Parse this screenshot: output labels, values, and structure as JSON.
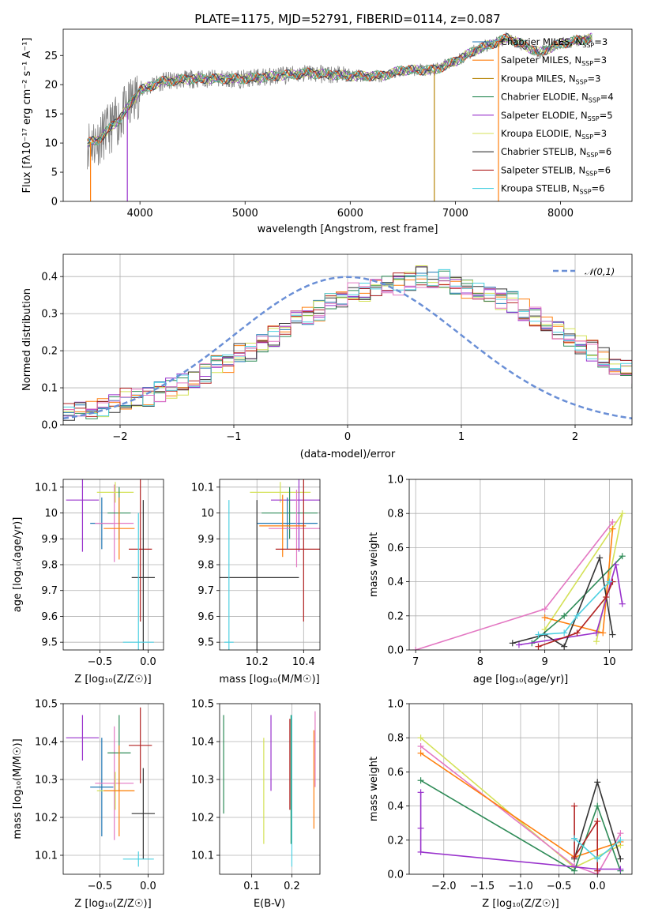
{
  "figure": {
    "title": "PLATE=1175, MJD=52791, FIBERID=0114, z=0.087"
  },
  "chart_data": [
    {
      "id": "spectrum",
      "type": "line",
      "xlabel": "wavelength [Angstrom, rest frame]",
      "ylabel": "Flux [fλ10⁻¹⁷ erg cm⁻² s⁻¹ A⁻¹]",
      "xlim": [
        3270,
        8680
      ],
      "ylim": [
        0,
        29.5
      ],
      "xticks": [
        4000,
        5000,
        6000,
        7000,
        8000
      ],
      "yticks": [
        0,
        5,
        10,
        15,
        20,
        25
      ],
      "legend_position": "right",
      "data": {
        "x": [
          3500,
          3600,
          3800,
          4000,
          4200,
          4500,
          4800,
          5000,
          5300,
          5600,
          6000,
          6300,
          6500,
          6800,
          7000,
          7200,
          7500,
          7800,
          8000,
          8300
        ],
        "y": [
          10,
          10.5,
          14,
          19,
          20.5,
          21,
          21,
          21,
          21.5,
          22,
          21.5,
          21.5,
          22.5,
          22.5,
          24,
          26,
          28,
          25.5,
          27,
          28
        ]
      },
      "series": [
        {
          "name": "Chabrier MILES, N_SSP=3",
          "label": "Chabrier MILES, N",
          "sub": "SSP",
          "suffix": "=3",
          "color": "#1f77b4"
        },
        {
          "name": "Salpeter MILES, N_SSP=3",
          "label": "Salpeter MILES, N",
          "sub": "SSP",
          "suffix": "=3",
          "color": "#ff7f0e"
        },
        {
          "name": "Kroupa MILES, N_SSP=3",
          "label": "Kroupa MILES, N",
          "sub": "SSP",
          "suffix": "=3",
          "color": "#b8860b"
        },
        {
          "name": "Chabrier ELODIE, N_SSP=4",
          "label": "Chabrier ELODIE, N",
          "sub": "SSP",
          "suffix": "=4",
          "color": "#2e8b57"
        },
        {
          "name": "Salpeter ELODIE, N_SSP=5",
          "label": "Salpeter ELODIE, N",
          "sub": "SSP",
          "suffix": "=5",
          "color": "#9932cc"
        },
        {
          "name": "Kroupa ELODIE, N_SSP=3",
          "label": "Kroupa ELODIE, N",
          "sub": "SSP",
          "suffix": "=3",
          "color": "#d4e157"
        },
        {
          "name": "Chabrier STELIB, N_SSP=6",
          "label": "Chabrier STELIB, N",
          "sub": "SSP",
          "suffix": "=6",
          "color": "#333333"
        },
        {
          "name": "Salpeter STELIB, N_SSP=6",
          "label": "Salpeter STELIB, N",
          "sub": "SSP",
          "suffix": "=6",
          "color": "#b22222"
        },
        {
          "name": "Kroupa STELIB, N_SSP=6",
          "label": "Kroupa STELIB, N",
          "sub": "SSP",
          "suffix": "=6",
          "color": "#4dd0e1"
        }
      ]
    },
    {
      "id": "residuals",
      "type": "bar",
      "xlabel": "(data-model)/error",
      "ylabel": "Normed distribution",
      "xlim": [
        -2.5,
        2.5
      ],
      "ylim": [
        0,
        0.46
      ],
      "xticks": [
        -2,
        -1,
        0,
        1,
        2
      ],
      "yticks": [
        0.0,
        0.1,
        0.2,
        0.3,
        0.4
      ],
      "grid": true,
      "legend": "𝒩(0,1)",
      "legend_position": "top-right",
      "bin_width": 0.1,
      "bin_start": -2.5,
      "histogram": [
        0.03,
        0.035,
        0.04,
        0.05,
        0.06,
        0.07,
        0.075,
        0.08,
        0.09,
        0.1,
        0.11,
        0.12,
        0.14,
        0.16,
        0.17,
        0.19,
        0.2,
        0.22,
        0.24,
        0.26,
        0.28,
        0.3,
        0.31,
        0.33,
        0.34,
        0.36,
        0.36,
        0.37,
        0.38,
        0.38,
        0.39,
        0.4,
        0.39,
        0.39,
        0.38,
        0.37,
        0.36,
        0.35,
        0.34,
        0.33,
        0.31,
        0.29,
        0.27,
        0.25,
        0.24,
        0.22,
        0.2,
        0.18,
        0.16,
        0.15,
        0.13,
        0.12,
        0.11,
        0.1,
        0.09,
        0.08,
        0.07,
        0.06,
        0.055,
        0.05,
        0.045,
        0.04,
        0.035,
        0.03,
        0.03,
        0.03,
        0.025,
        0.025,
        0.02,
        0.02
      ],
      "normal_curve_color": "#6a8fd6"
    },
    {
      "id": "age-vs-Z",
      "type": "scatter",
      "xlabel": "Z [log₁₀(Z/Z☉)]",
      "ylabel": "age  [log₁₀(age/yr)]",
      "xlim": [
        -0.88,
        0.16
      ],
      "ylim": [
        9.47,
        10.13
      ],
      "xticks": [
        -0.5,
        0.0
      ],
      "xticklabels": [
        "−0.5",
        "0.0"
      ],
      "yticks": [
        9.5,
        9.6,
        9.7,
        9.8,
        9.9,
        10.0,
        10.1
      ],
      "grid": true,
      "points": [
        {
          "x": -0.68,
          "xerr": 0.17,
          "y": 10.05,
          "yerr": 0.2,
          "color": "#9932cc"
        },
        {
          "x": -0.48,
          "xerr": 0.12,
          "y": 9.96,
          "yerr": 0.1,
          "color": "#1f77b4"
        },
        {
          "x": -0.35,
          "xerr": 0.2,
          "y": 9.96,
          "yerr": 0.15,
          "color": "#e377c2"
        },
        {
          "x": -0.34,
          "xerr": 0.19,
          "y": 10.08,
          "yerr": 0.04,
          "color": "#d4e157"
        },
        {
          "x": -0.3,
          "xerr": 0.12,
          "y": 10.0,
          "yerr": 0.1,
          "color": "#2e8b57"
        },
        {
          "x": -0.3,
          "xerr": 0.16,
          "y": 9.94,
          "yerr": 0.12,
          "color": "#ff7f0e"
        },
        {
          "x": -0.08,
          "xerr": 0.12,
          "y": 9.86,
          "yerr": 0.28,
          "color": "#b22222"
        },
        {
          "x": -0.05,
          "xerr": 0.12,
          "y": 9.75,
          "yerr": 0.3,
          "color": "#333333"
        },
        {
          "x": -0.1,
          "xerr": 0.16,
          "y": 9.5,
          "yerr": 0.5,
          "color": "#4dd0e1"
        }
      ]
    },
    {
      "id": "age-vs-mass",
      "type": "scatter",
      "xlabel": "mass [log₁₀(M/M☉)]",
      "ylabel": "",
      "xlim": [
        10.04,
        10.47
      ],
      "ylim": [
        9.47,
        10.13
      ],
      "xticks": [
        10.2,
        10.4
      ],
      "yticks": [
        9.5,
        9.6,
        9.7,
        9.8,
        9.9,
        10.0,
        10.1
      ],
      "grid": true,
      "points": [
        {
          "x": 10.3,
          "xerr": 0.13,
          "y": 10.08,
          "yerr": 0.04,
          "color": "#d4e157"
        },
        {
          "x": 10.38,
          "xerr": 0.12,
          "y": 10.05,
          "yerr": 0.2,
          "color": "#9932cc"
        },
        {
          "x": 10.34,
          "xerr": 0.12,
          "y": 10.0,
          "yerr": 0.1,
          "color": "#2e8b57"
        },
        {
          "x": 10.33,
          "xerr": 0.13,
          "y": 9.96,
          "yerr": 0.1,
          "color": "#1f77b4"
        },
        {
          "x": 10.37,
          "xerr": 0.12,
          "y": 9.94,
          "yerr": 0.15,
          "color": "#e377c2"
        },
        {
          "x": 10.31,
          "xerr": 0.1,
          "y": 9.95,
          "yerr": 0.12,
          "color": "#ff7f0e"
        },
        {
          "x": 10.4,
          "xerr": 0.12,
          "y": 9.86,
          "yerr": 0.28,
          "color": "#b22222"
        },
        {
          "x": 10.2,
          "xerr": 0.18,
          "y": 9.75,
          "yerr": 0.3,
          "color": "#333333"
        },
        {
          "x": 10.08,
          "xerr": 0.02,
          "y": 9.5,
          "yerr": 0.55,
          "color": "#4dd0e1"
        }
      ]
    },
    {
      "id": "mass-weight-vs-age",
      "type": "line",
      "xlabel": "age  [log₁₀(age/yr)]",
      "ylabel": "mass weight",
      "xlim": [
        6.9,
        10.35
      ],
      "ylim": [
        0,
        1.0
      ],
      "xticks": [
        7,
        8,
        9,
        10
      ],
      "yticks": [
        0.0,
        0.2,
        0.4,
        0.6,
        0.8,
        1.0
      ],
      "grid": true,
      "series": [
        {
          "color": "#e377c2",
          "x": [
            7.0,
            9.0,
            10.05
          ],
          "y": [
            0.0,
            0.24,
            0.75
          ]
        },
        {
          "color": "#d4e157",
          "x": [
            9.0,
            10.2,
            9.8
          ],
          "y": [
            0.12,
            0.8,
            0.05
          ]
        },
        {
          "color": "#ff7f0e",
          "x": [
            9.0,
            9.9,
            10.05
          ],
          "y": [
            0.19,
            0.1,
            0.71
          ]
        },
        {
          "color": "#2e8b57",
          "x": [
            8.8,
            9.3,
            10.2
          ],
          "y": [
            0.04,
            0.2,
            0.55
          ]
        },
        {
          "color": "#9932cc",
          "x": [
            8.6,
            9.8,
            10.1,
            10.2
          ],
          "y": [
            0.03,
            0.1,
            0.5,
            0.27
          ]
        },
        {
          "color": "#333333",
          "x": [
            8.5,
            9.0,
            9.3,
            9.85,
            10.05
          ],
          "y": [
            0.04,
            0.09,
            0.02,
            0.54,
            0.09
          ]
        },
        {
          "color": "#b22222",
          "x": [
            8.9,
            9.5,
            9.95,
            10.05
          ],
          "y": [
            0.02,
            0.1,
            0.31,
            0.4
          ]
        },
        {
          "color": "#4dd0e1",
          "x": [
            8.9,
            9.3,
            9.5,
            10.0
          ],
          "y": [
            0.09,
            0.1,
            0.2,
            0.4
          ]
        }
      ]
    },
    {
      "id": "mass-vs-Z",
      "type": "scatter",
      "xlabel": "Z [log₁₀(Z/Z☉)]",
      "ylabel": "mass [log₁₀(M/M☉)]",
      "xlim": [
        -0.88,
        0.16
      ],
      "ylim": [
        10.05,
        10.5
      ],
      "xticks": [
        -0.5,
        0.0
      ],
      "xticklabels": [
        "−0.5",
        "0.0"
      ],
      "yticks": [
        10.1,
        10.2,
        10.3,
        10.4,
        10.5
      ],
      "grid": true,
      "points": [
        {
          "x": -0.68,
          "xerr": 0.17,
          "y": 10.41,
          "yerr": 0.06,
          "color": "#9932cc"
        },
        {
          "x": -0.48,
          "xerr": 0.12,
          "y": 10.28,
          "yerr": 0.13,
          "color": "#1f77b4"
        },
        {
          "x": -0.35,
          "xerr": 0.2,
          "y": 10.29,
          "yerr": 0.15,
          "color": "#e377c2"
        },
        {
          "x": -0.34,
          "xerr": 0.19,
          "y": 10.27,
          "yerr": 0.05,
          "color": "#d4e157"
        },
        {
          "x": -0.3,
          "xerr": 0.12,
          "y": 10.37,
          "yerr": 0.1,
          "color": "#2e8b57"
        },
        {
          "x": -0.3,
          "xerr": 0.16,
          "y": 10.27,
          "yerr": 0.12,
          "color": "#ff7f0e"
        },
        {
          "x": -0.08,
          "xerr": 0.12,
          "y": 10.39,
          "yerr": 0.1,
          "color": "#b22222"
        },
        {
          "x": -0.05,
          "xerr": 0.12,
          "y": 10.21,
          "yerr": 0.12,
          "color": "#333333"
        },
        {
          "x": -0.1,
          "xerr": 0.16,
          "y": 10.09,
          "yerr": 0.02,
          "color": "#4dd0e1"
        }
      ]
    },
    {
      "id": "mass-vs-EBV",
      "type": "scatter",
      "xlabel": "E(B-V)",
      "ylabel": "",
      "xlim": [
        0.02,
        0.27
      ],
      "ylim": [
        10.05,
        10.5
      ],
      "xticks": [
        0.1,
        0.2
      ],
      "yticks": [
        10.1,
        10.2,
        10.3,
        10.4,
        10.5
      ],
      "grid": true,
      "points": [
        {
          "x": 0.03,
          "xerr": 0,
          "y": 10.34,
          "yerr": 0.13,
          "color": "#2e8b57"
        },
        {
          "x": 0.13,
          "xerr": 0,
          "y": 10.27,
          "yerr": 0.14,
          "color": "#d4e157"
        },
        {
          "x": 0.148,
          "xerr": 0,
          "y": 10.37,
          "yerr": 0.1,
          "color": "#9932cc"
        },
        {
          "x": 0.195,
          "xerr": 0,
          "y": 10.34,
          "yerr": 0.12,
          "color": "#b22222"
        },
        {
          "x": 0.198,
          "xerr": 0,
          "y": 10.3,
          "yerr": 0.17,
          "color": "#2e8b57"
        },
        {
          "x": 0.2,
          "xerr": 0,
          "y": 10.27,
          "yerr": 0.2,
          "color": "#4dd0e1"
        },
        {
          "x": 0.255,
          "xerr": 0,
          "y": 10.3,
          "yerr": 0.13,
          "color": "#ff7f0e"
        },
        {
          "x": 0.258,
          "xerr": 0,
          "y": 10.38,
          "yerr": 0.1,
          "color": "#e377c2"
        }
      ]
    },
    {
      "id": "mass-weight-vs-Z",
      "type": "line",
      "xlabel": "Z [log₁₀(Z/Z☉)]",
      "ylabel": "mass weight",
      "xlim": [
        -2.45,
        0.45
      ],
      "ylim": [
        0,
        1.0
      ],
      "xticks": [
        -2.0,
        -1.5,
        -1.0,
        -0.5,
        0.0
      ],
      "xticklabels": [
        "−2.0",
        "−1.5",
        "−1.0",
        "−0.5",
        "0.0"
      ],
      "yticks": [
        0.0,
        0.2,
        0.4,
        0.6,
        0.8,
        1.0
      ],
      "grid": true,
      "series": [
        {
          "color": "#d4e157",
          "x": [
            -2.3,
            -0.3,
            0.3
          ],
          "y": [
            0.8,
            0.04,
            0.17
          ]
        },
        {
          "color": "#e377c2",
          "x": [
            -2.3,
            -0.3,
            0.0,
            0.3
          ],
          "y": [
            0.75,
            0.05,
            0.0,
            0.24
          ]
        },
        {
          "color": "#ff7f0e",
          "x": [
            -2.3,
            -0.3,
            0.3
          ],
          "y": [
            0.71,
            0.1,
            0.19
          ]
        },
        {
          "color": "#2e8b57",
          "x": [
            -2.3,
            -0.3,
            0.0,
            0.3
          ],
          "y": [
            0.55,
            0.02,
            0.4,
            0.02
          ]
        },
        {
          "color": "#9932cc",
          "x": [
            -2.3,
            -2.3,
            -2.3,
            0.0,
            0.3
          ],
          "y": [
            0.48,
            0.27,
            0.13,
            0.03,
            0.03
          ]
        },
        {
          "color": "#333333",
          "x": [
            -0.3,
            0.0,
            0.3
          ],
          "y": [
            0.09,
            0.54,
            0.09
          ]
        },
        {
          "color": "#b22222",
          "x": [
            -0.3,
            -0.3,
            0.0,
            0.0
          ],
          "y": [
            0.4,
            0.1,
            0.31,
            0.02
          ]
        },
        {
          "color": "#4dd0e1",
          "x": [
            -0.3,
            0.0,
            0.3
          ],
          "y": [
            0.21,
            0.09,
            0.2
          ]
        }
      ]
    }
  ]
}
